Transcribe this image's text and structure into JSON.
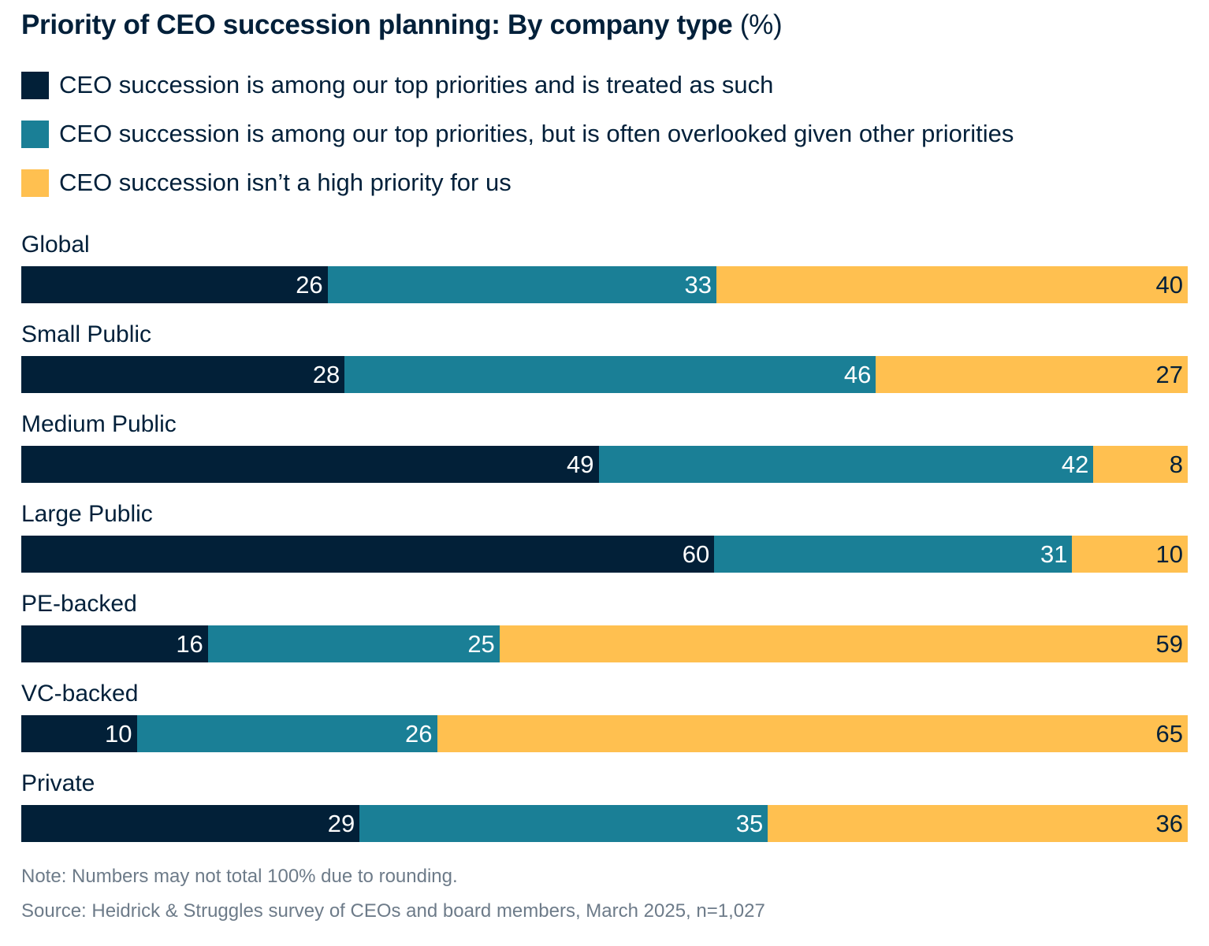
{
  "chart_data": {
    "type": "bar",
    "orientation": "horizontal",
    "stacked": true,
    "normalized_to_100": true,
    "title": "Priority of CEO succession planning: By company type",
    "title_unit": "(%)",
    "categories": [
      "Global",
      "Small Public",
      "Medium Public",
      "Large Public",
      "PE-backed",
      "VC-backed",
      "Private"
    ],
    "series": [
      {
        "name": "CEO succession is among our top priorities and is treated as such",
        "color": "#022038",
        "label_color": "#ffffff",
        "values": [
          26,
          28,
          49,
          60,
          16,
          10,
          29
        ]
      },
      {
        "name": "CEO succession is among our top priorities, but is often overlooked given other priorities",
        "color": "#1a7f96",
        "label_color": "#ffffff",
        "values": [
          33,
          46,
          42,
          31,
          25,
          26,
          35
        ]
      },
      {
        "name": "CEO succession isn’t a high priority for us",
        "color": "#ffc050",
        "label_color": "#02203a",
        "values": [
          40,
          27,
          8,
          10,
          59,
          65,
          36
        ]
      }
    ],
    "legend_position": "top",
    "grid": false
  },
  "notes": {
    "note": "Note: Numbers may not total 100% due to rounding.",
    "source": "Source: Heidrick & Struggles survey of CEOs and board members, March 2025, n=1,027"
  }
}
